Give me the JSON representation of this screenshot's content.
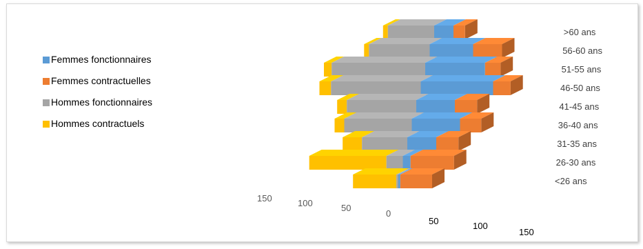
{
  "chart_data": {
    "type": "bar",
    "orientation": "horizontal-pyramid-3d",
    "categories": [
      "<26 ans",
      "26-30 ans",
      "31-35 ans",
      "36-40 ans",
      "41-45 ans",
      "46-50 ans",
      "51-55 ans",
      "56-60 ans",
      ">60 ans"
    ],
    "series": [
      {
        "name": "Femmes fonctionnaires",
        "color": "#5b9bd5",
        "side": "right",
        "values": [
          2,
          8,
          30,
          50,
          40,
          75,
          62,
          45,
          20
        ]
      },
      {
        "name": "Femmes contractuelles",
        "color": "#ed7d31",
        "side": "right",
        "values": [
          33,
          45,
          23,
          22,
          23,
          18,
          16,
          30,
          12
        ]
      },
      {
        "name": "Hommes fonctionnaires",
        "color": "#a5a5a5",
        "side": "left",
        "values": [
          2,
          17,
          47,
          70,
          72,
          93,
          97,
          63,
          48
        ]
      },
      {
        "name": "Hommes contractuels",
        "color": "#ffc000",
        "side": "left",
        "values": [
          45,
          80,
          20,
          10,
          10,
          12,
          8,
          5,
          5
        ]
      }
    ],
    "left_ticks": [
      "150",
      "100",
      "50",
      "0"
    ],
    "right_ticks": [
      "50",
      "100",
      "150"
    ],
    "legend_position": "left",
    "grid": false
  }
}
